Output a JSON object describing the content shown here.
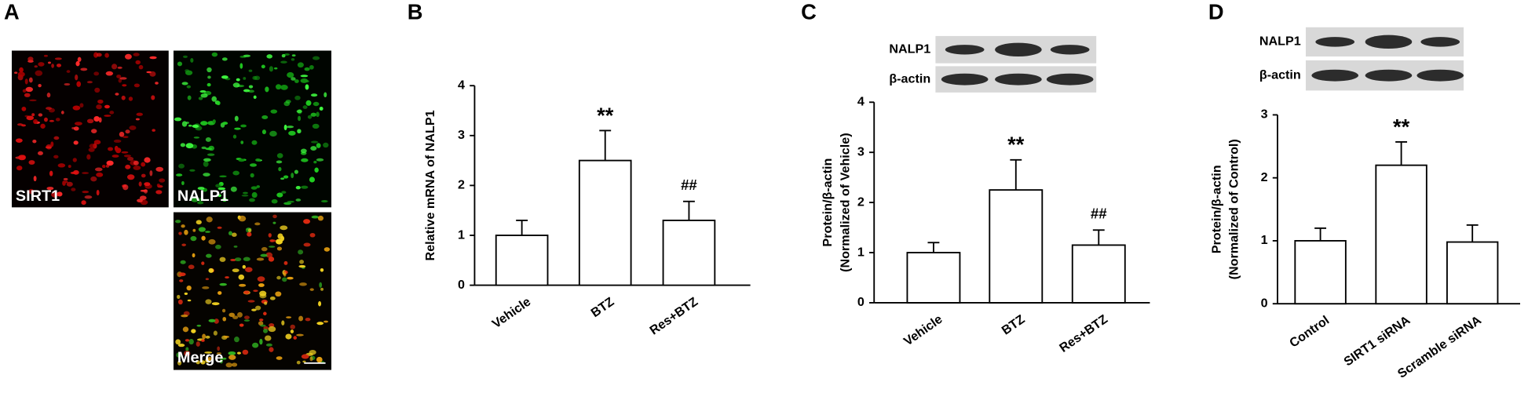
{
  "images": {
    "panel_label": "A",
    "labels": [
      "SIRT1",
      "NALP1",
      "Merge"
    ]
  },
  "chart_data": [
    {
      "type": "bar",
      "panel_label": "B",
      "y_label": [
        "Relative mRNA of NALP1"
      ],
      "categories": [
        "Vehicle",
        "BTZ",
        "Res+BTZ"
      ],
      "values": [
        1.0,
        2.5,
        1.3
      ],
      "errors": [
        0.3,
        0.6,
        0.38
      ],
      "color": "#ffffff",
      "ylim": [
        0,
        4
      ],
      "yticks": [
        0,
        1,
        2,
        3,
        4
      ],
      "annotations": [
        {
          "category": "BTZ",
          "text": "**"
        },
        {
          "category": "Res+BTZ",
          "text": "##"
        }
      ]
    },
    {
      "type": "bar",
      "panel_label": "C",
      "y_label": [
        "Protein/β-actin",
        "(Normalized of Vehicle)"
      ],
      "blot_labels": [
        "NALP1",
        "β-actin"
      ],
      "categories": [
        "Vehicle",
        "BTZ",
        "Res+BTZ"
      ],
      "values": [
        1.0,
        2.25,
        1.15
      ],
      "errors": [
        0.2,
        0.6,
        0.3
      ],
      "color": "#ffffff",
      "ylim": [
        0,
        4
      ],
      "yticks": [
        0,
        1,
        2,
        3,
        4
      ],
      "annotations": [
        {
          "category": "BTZ",
          "text": "**"
        },
        {
          "category": "Res+BTZ",
          "text": "##"
        }
      ]
    },
    {
      "type": "bar",
      "panel_label": "D",
      "y_label": [
        "Protein/β-actin",
        "(Normalized of Control)"
      ],
      "blot_labels": [
        "NALP1",
        "β-actin"
      ],
      "categories": [
        "Control",
        "SIRT1 siRNA",
        "Scramble siRNA"
      ],
      "values": [
        1.0,
        2.2,
        0.98
      ],
      "errors": [
        0.2,
        0.37,
        0.27
      ],
      "color": "#ffffff",
      "ylim": [
        0,
        3
      ],
      "yticks": [
        0,
        1,
        2,
        3
      ],
      "annotations": [
        {
          "category": "SIRT1 siRNA",
          "text": "**"
        }
      ]
    }
  ]
}
